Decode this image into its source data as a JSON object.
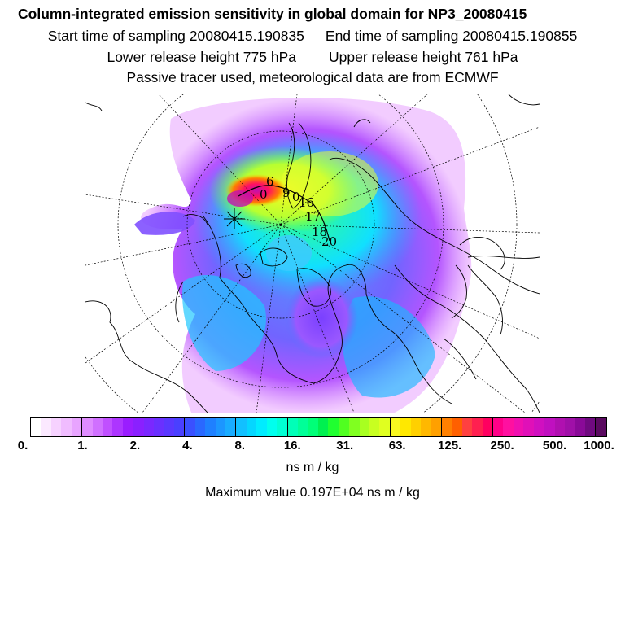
{
  "header": {
    "title": "Column-integrated emission sensitivity in global domain for NP3_20080415",
    "start_time": "Start time of sampling 20080415.190835",
    "end_time": "End time of sampling 20080415.190855",
    "lower_release": "Lower release height  775 hPa",
    "upper_release": "Upper release height  761 hPa",
    "tracer_note": "Passive tracer used, meteorological data are from ECMWF"
  },
  "map": {
    "projection": "north-polar-stereographic",
    "trajectory_markers": [
      "6",
      "0",
      "9",
      "0",
      "16",
      "17",
      "18",
      "20"
    ],
    "colors": {
      "coastline": "#000000",
      "gridline": "#000000",
      "background": "#ffffff"
    }
  },
  "colorbar": {
    "tick_labels": [
      "0.",
      "1.",
      "2.",
      "4.",
      "8.",
      "16.",
      "31.",
      "63.",
      "125.",
      "250.",
      "500.",
      "1000."
    ],
    "colors": [
      "#ffffff",
      "#fbe9ff",
      "#f6d2ff",
      "#f0bcff",
      "#e8a4ff",
      "#df8cff",
      "#d070ff",
      "#c050ff",
      "#ad35ff",
      "#9a1dff",
      "#8a20ff",
      "#7a28ff",
      "#6a30ff",
      "#5a38ff",
      "#4a40ff",
      "#3a50ff",
      "#2a68ff",
      "#1f80ff",
      "#1c96ff",
      "#19acff",
      "#12c0ff",
      "#05d6ff",
      "#00ecff",
      "#00ffee",
      "#00ffd4",
      "#00ffb8",
      "#00ff98",
      "#00ff78",
      "#00f050",
      "#20ff30",
      "#50ff20",
      "#80ff20",
      "#a8ff20",
      "#c8ff20",
      "#e0ff20",
      "#f8f820",
      "#ffe800",
      "#ffd000",
      "#ffb800",
      "#ffa000",
      "#ff8000",
      "#ff6000",
      "#ff4040",
      "#ff2050",
      "#ff0060",
      "#ff0088",
      "#ff10a0",
      "#f010b0",
      "#e010b8",
      "#d010c0",
      "#c010c0",
      "#b010b0",
      "#a010a8",
      "#8a0a98",
      "#700a80",
      "#5a0a60"
    ],
    "units": "ns m / kg",
    "max_value": "Maximum value  0.197E+04 ns m / kg"
  }
}
